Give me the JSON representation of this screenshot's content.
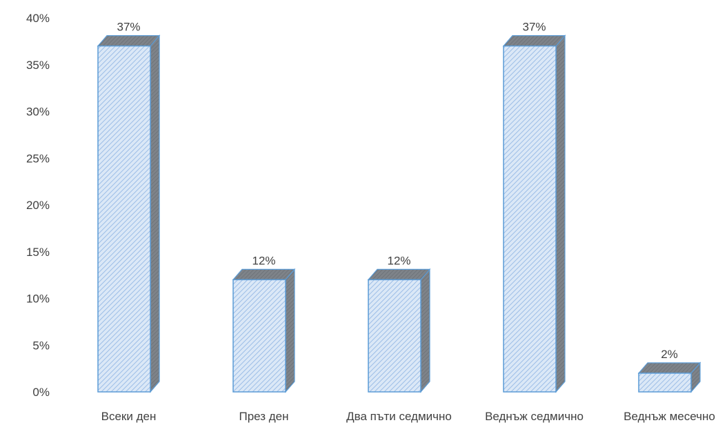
{
  "chart_data": {
    "type": "bar",
    "style": "3d-column",
    "categories": [
      "Всеки ден",
      "През ден",
      "Два пъти седмично",
      "Веднъж седмично",
      "Веднъж месечно"
    ],
    "values": [
      37,
      12,
      12,
      37,
      2
    ],
    "data_labels": [
      "37%",
      "12%",
      "12%",
      "37%",
      "2%"
    ],
    "yticks": [
      "0%",
      "5%",
      "10%",
      "15%",
      "20%",
      "25%",
      "30%",
      "35%",
      "40%"
    ],
    "ylim": [
      0,
      40
    ],
    "y_unit": "%",
    "grid": false,
    "legend": "none",
    "colors": {
      "bar_front": "#dbe8f7",
      "bar_hatch": "#9cbde6",
      "bar_side": "#7a7f85",
      "bar_top": "#8e98a3",
      "bar_edge": "#5b9bd5"
    }
  }
}
